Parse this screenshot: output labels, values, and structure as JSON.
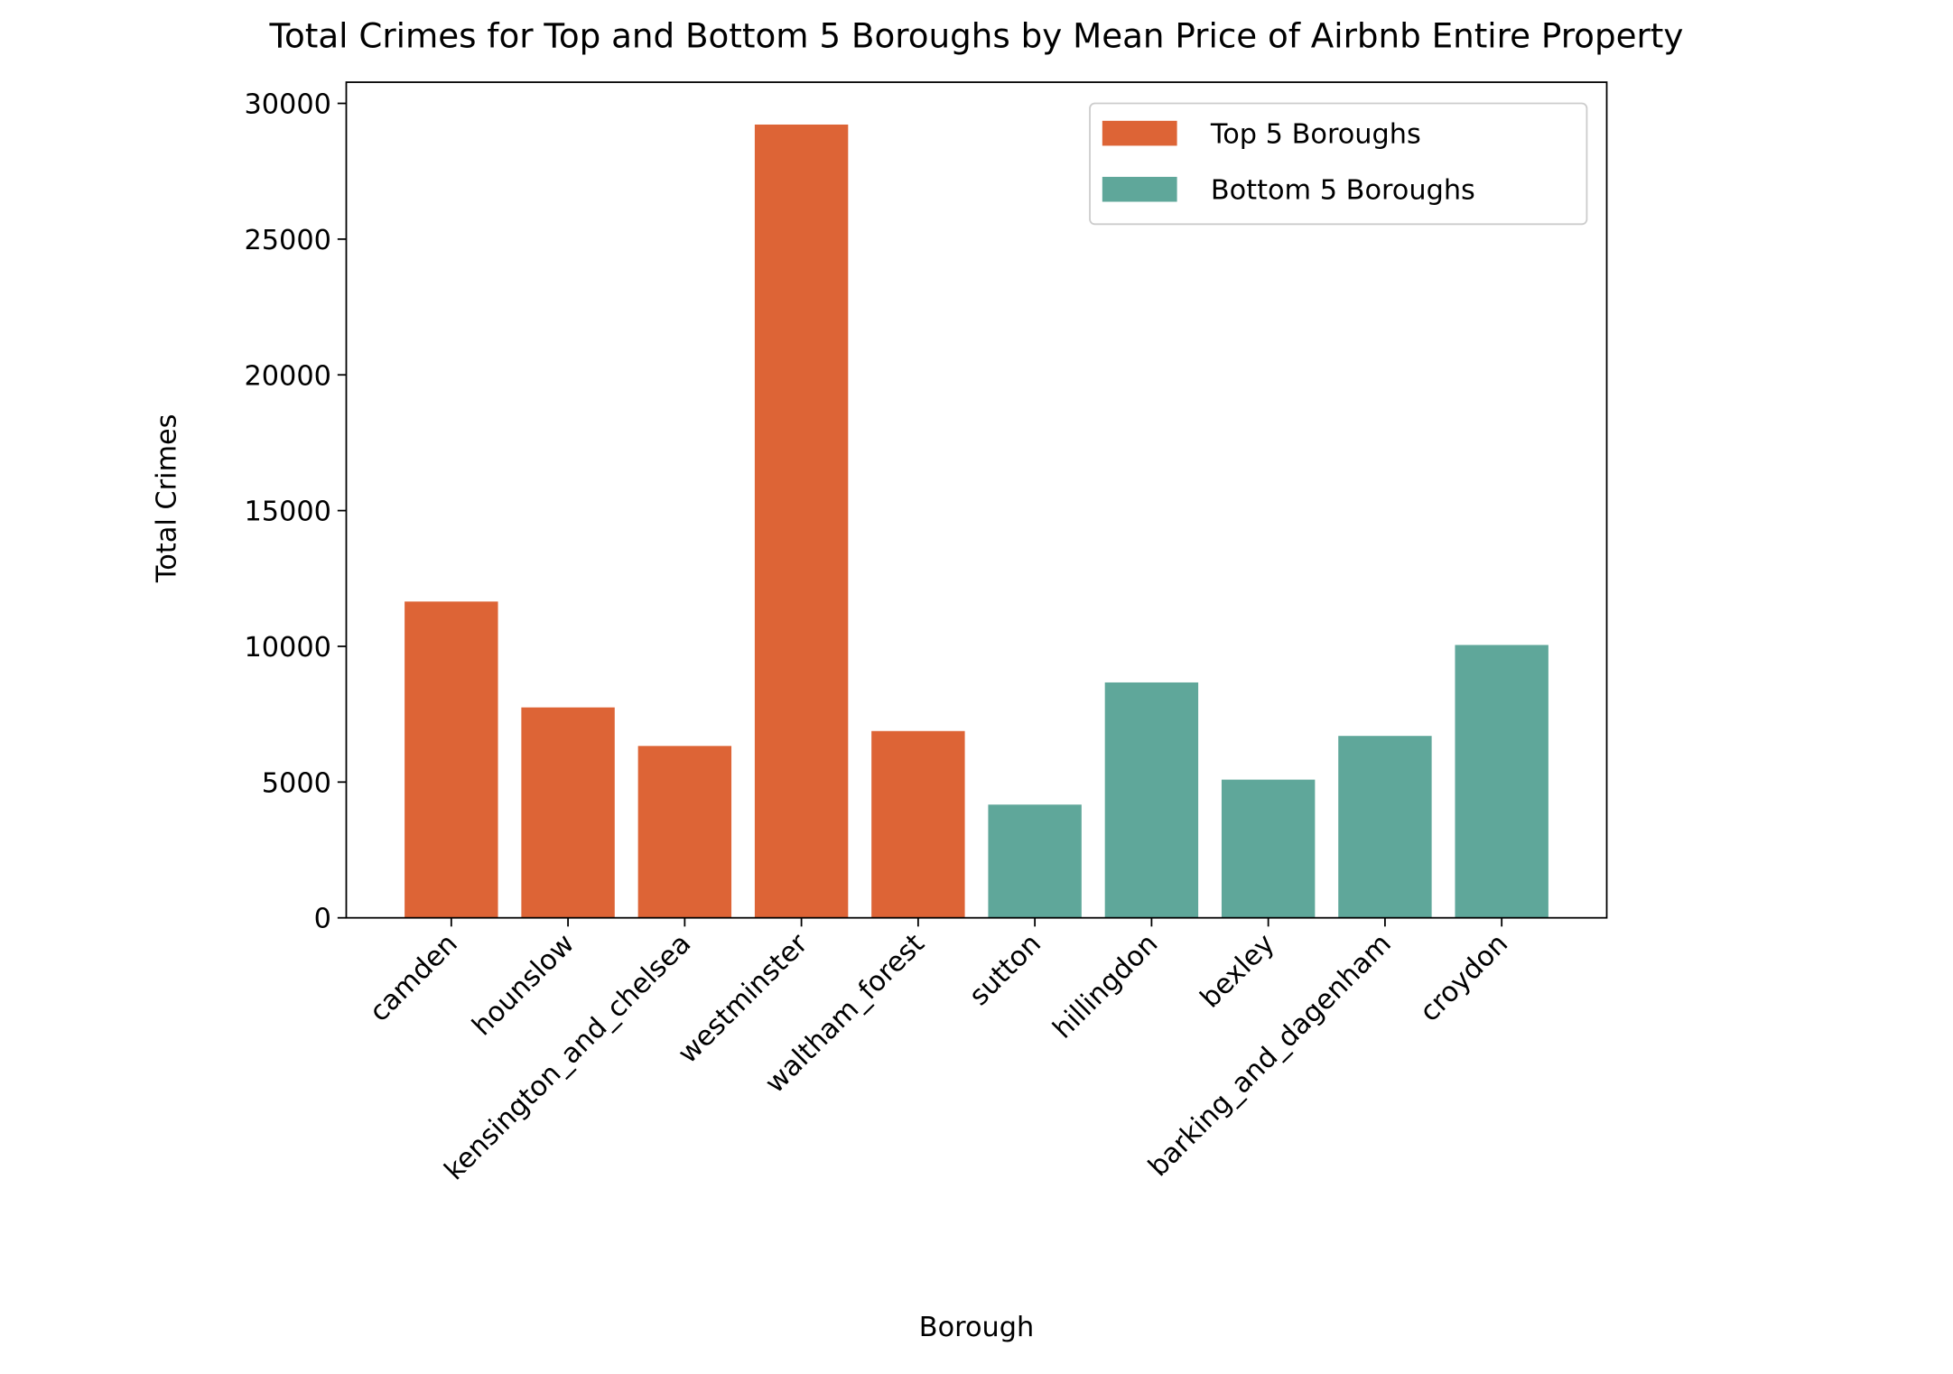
{
  "chart_data": {
    "type": "bar",
    "title": "Total Crimes for Top and Bottom 5 Boroughs by Mean Price of Airbnb Entire Property",
    "xlabel": "Borough",
    "ylabel": "Total Crimes",
    "categories": [
      "camden",
      "hounslow",
      "kensington_and_chelsea",
      "westminster",
      "waltham_forest",
      "sutton",
      "hillingdon",
      "bexley",
      "barking_and_dagenham",
      "croydon"
    ],
    "series": [
      {
        "name": "Top 5 Boroughs",
        "color": "#dd6436",
        "values": [
          11650,
          7750,
          6330,
          29220,
          6880,
          null,
          null,
          null,
          null,
          null
        ]
      },
      {
        "name": "Bottom 5 Boroughs",
        "color": "#5fa79a",
        "values": [
          null,
          null,
          null,
          null,
          null,
          4170,
          8670,
          5090,
          6700,
          10050
        ]
      }
    ],
    "ylim": [
      0,
      30780
    ],
    "yticks": [
      0,
      5000,
      10000,
      15000,
      20000,
      25000,
      30000
    ],
    "grid": false,
    "legend": "upper right"
  }
}
